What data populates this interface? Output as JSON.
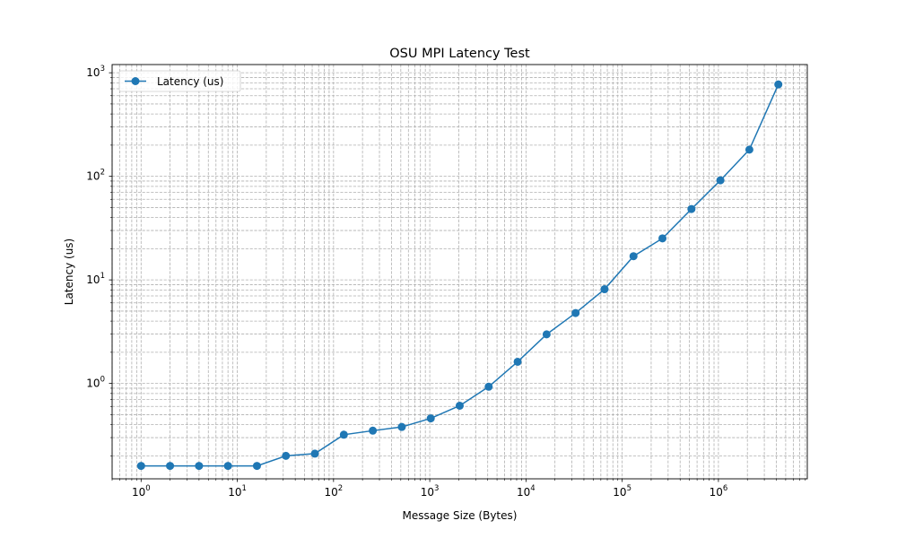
{
  "chart_data": {
    "type": "line",
    "title": "OSU MPI Latency Test",
    "xlabel": "Message Size (Bytes)",
    "ylabel": "Latency (us)",
    "x_scale": "log",
    "y_scale": "log",
    "xlim": [
      0.5,
      8388608
    ],
    "ylim": [
      0.12,
      1200
    ],
    "grid": true,
    "legend_position": "top-left",
    "x_ticks": [
      {
        "value": 1,
        "base": "10",
        "exp": "0"
      },
      {
        "value": 10,
        "base": "10",
        "exp": "1"
      },
      {
        "value": 100,
        "base": "10",
        "exp": "2"
      },
      {
        "value": 1000,
        "base": "10",
        "exp": "3"
      },
      {
        "value": 10000,
        "base": "10",
        "exp": "4"
      },
      {
        "value": 100000,
        "base": "10",
        "exp": "5"
      },
      {
        "value": 1000000,
        "base": "10",
        "exp": "6"
      }
    ],
    "y_ticks": [
      {
        "value": 1,
        "base": "10",
        "exp": "0"
      },
      {
        "value": 10,
        "base": "10",
        "exp": "1"
      },
      {
        "value": 100,
        "base": "10",
        "exp": "2"
      },
      {
        "value": 1000,
        "base": "10",
        "exp": "3"
      }
    ],
    "series": [
      {
        "name": "Latency (us)",
        "color": "#1f77b4",
        "marker": "circle",
        "x": [
          1,
          2,
          4,
          8,
          16,
          32,
          64,
          128,
          256,
          512,
          1024,
          2048,
          4096,
          8192,
          16384,
          32768,
          65536,
          131072,
          262144,
          524288,
          1048576,
          2097152,
          4194304
        ],
        "y": [
          0.16,
          0.16,
          0.16,
          0.16,
          0.16,
          0.2,
          0.21,
          0.32,
          0.35,
          0.38,
          0.46,
          0.61,
          0.93,
          1.62,
          2.98,
          4.79,
          8.13,
          16.94,
          25.17,
          48.36,
          91.54,
          181.05,
          771.38
        ]
      }
    ]
  }
}
